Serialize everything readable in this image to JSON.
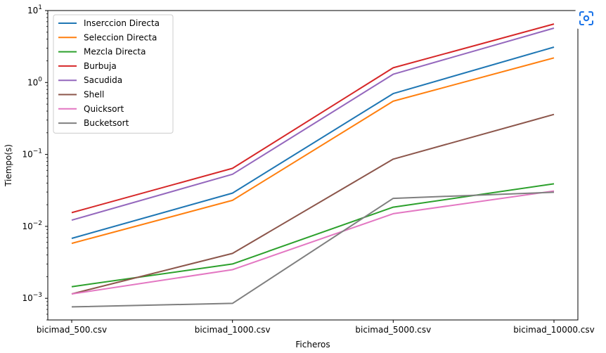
{
  "chart_data": {
    "type": "line",
    "title": "",
    "xlabel": "Ficheros",
    "ylabel": "Tiempo(s)",
    "yscale": "log",
    "ylim": [
      0.0005,
      10
    ],
    "categories": [
      "bicimad_500.csv",
      "bicimad_1000.csv",
      "bicimad_5000.csv",
      "bicimad_10000.csv"
    ],
    "y_ticks": [
      {
        "value": 0.001,
        "base": "10",
        "exp": "−3"
      },
      {
        "value": 0.01,
        "base": "10",
        "exp": "−2"
      },
      {
        "value": 0.1,
        "base": "10",
        "exp": "−1"
      },
      {
        "value": 1,
        "base": "10",
        "exp": "0"
      },
      {
        "value": 10,
        "base": "10",
        "exp": "1"
      }
    ],
    "legend_position": "top-left",
    "grid": false,
    "series": [
      {
        "name": "Inserccion Directa",
        "color": "#1f77b4",
        "values": [
          0.0068,
          0.029,
          0.7,
          3.1
        ]
      },
      {
        "name": "Seleccion Directa",
        "color": "#ff7f0e",
        "values": [
          0.0058,
          0.023,
          0.55,
          2.2
        ]
      },
      {
        "name": "Mezcla Directa",
        "color": "#2ca02c",
        "values": [
          0.00145,
          0.003,
          0.0185,
          0.039
        ]
      },
      {
        "name": "Burbuja",
        "color": "#d62728",
        "values": [
          0.0155,
          0.064,
          1.6,
          6.5
        ]
      },
      {
        "name": "Sacudida",
        "color": "#9467bd",
        "values": [
          0.0122,
          0.053,
          1.3,
          5.7
        ]
      },
      {
        "name": "Shell",
        "color": "#8c564b",
        "values": [
          0.00115,
          0.0042,
          0.086,
          0.36
        ]
      },
      {
        "name": "Quicksort",
        "color": "#e377c2",
        "values": [
          0.00115,
          0.0025,
          0.015,
          0.031
        ]
      },
      {
        "name": "Bucketsort",
        "color": "#7f7f7f",
        "values": [
          0.00076,
          0.00085,
          0.0245,
          0.0298
        ]
      }
    ]
  },
  "toolbar": {
    "icon": "camera-scan-icon",
    "accent": "#1a73e8"
  }
}
